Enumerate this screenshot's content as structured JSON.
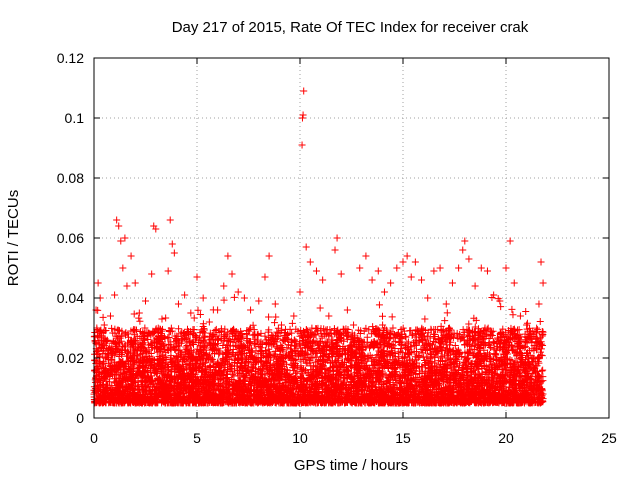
{
  "chart_data": {
    "type": "scatter",
    "title": "Day 217 of 2015, Rate Of TEC Index for receiver crak",
    "xlabel": "GPS time / hours",
    "ylabel": "ROTI / TECUs",
    "xlim": [
      0,
      25
    ],
    "ylim": [
      0,
      0.12
    ],
    "xticks": [
      0,
      5,
      10,
      15,
      20,
      25
    ],
    "yticks": [
      0,
      0.02,
      0.04,
      0.06,
      0.08,
      0.1,
      0.12
    ],
    "xtick_labels": [
      "0",
      "5",
      "10",
      "15",
      "20",
      "25"
    ],
    "ytick_labels": [
      "0",
      "0.02",
      "0.04",
      "0.06",
      "0.08",
      "0.1",
      "0.12"
    ],
    "grid": true,
    "marker": "+",
    "point_color": "#ff0000",
    "x_range_of_data": [
      0,
      21.8
    ],
    "typical_band": [
      0.005,
      0.03
    ],
    "series": [
      {
        "points": [
          [
            0.1,
            0.036
          ],
          [
            0.2,
            0.045
          ],
          [
            0.3,
            0.04
          ],
          [
            0.5,
            0.031
          ],
          [
            0.8,
            0.034
          ],
          [
            1.0,
            0.041
          ],
          [
            1.1,
            0.066
          ],
          [
            1.2,
            0.064
          ],
          [
            1.3,
            0.059
          ],
          [
            1.4,
            0.05
          ],
          [
            1.5,
            0.06
          ],
          [
            1.6,
            0.044
          ],
          [
            1.8,
            0.054
          ],
          [
            2.0,
            0.045
          ],
          [
            2.2,
            0.035
          ],
          [
            2.5,
            0.039
          ],
          [
            2.8,
            0.048
          ],
          [
            2.9,
            0.064
          ],
          [
            3.0,
            0.063
          ],
          [
            3.3,
            0.033
          ],
          [
            3.6,
            0.049
          ],
          [
            3.7,
            0.066
          ],
          [
            3.8,
            0.058
          ],
          [
            3.9,
            0.055
          ],
          [
            4.1,
            0.038
          ],
          [
            4.4,
            0.041
          ],
          [
            4.7,
            0.035
          ],
          [
            5.0,
            0.047
          ],
          [
            5.3,
            0.04
          ],
          [
            5.6,
            0.032
          ],
          [
            6.0,
            0.036
          ],
          [
            6.3,
            0.044
          ],
          [
            6.5,
            0.054
          ],
          [
            6.7,
            0.048
          ],
          [
            7.0,
            0.042
          ],
          [
            7.3,
            0.04
          ],
          [
            7.6,
            0.036
          ],
          [
            8.0,
            0.039
          ],
          [
            8.3,
            0.047
          ],
          [
            8.5,
            0.054
          ],
          [
            8.8,
            0.038
          ],
          [
            9.1,
            0.031
          ],
          [
            9.4,
            0.028
          ],
          [
            9.7,
            0.034
          ],
          [
            10.0,
            0.042
          ],
          [
            10.1,
            0.091
          ],
          [
            10.12,
            0.1
          ],
          [
            10.15,
            0.101
          ],
          [
            10.18,
            0.109
          ],
          [
            10.3,
            0.057
          ],
          [
            10.5,
            0.052
          ],
          [
            10.8,
            0.049
          ],
          [
            11.1,
            0.046
          ],
          [
            11.4,
            0.034
          ],
          [
            11.7,
            0.056
          ],
          [
            11.8,
            0.06
          ],
          [
            12.0,
            0.048
          ],
          [
            12.3,
            0.036
          ],
          [
            12.6,
            0.031
          ],
          [
            12.9,
            0.05
          ],
          [
            13.2,
            0.054
          ],
          [
            13.5,
            0.046
          ],
          [
            13.8,
            0.049
          ],
          [
            14.1,
            0.042
          ],
          [
            14.4,
            0.045
          ],
          [
            14.7,
            0.05
          ],
          [
            15.0,
            0.052
          ],
          [
            15.2,
            0.054
          ],
          [
            15.4,
            0.047
          ],
          [
            15.6,
            0.052
          ],
          [
            15.9,
            0.046
          ],
          [
            16.2,
            0.04
          ],
          [
            16.5,
            0.049
          ],
          [
            16.8,
            0.05
          ],
          [
            17.1,
            0.038
          ],
          [
            17.4,
            0.045
          ],
          [
            17.7,
            0.05
          ],
          [
            17.9,
            0.056
          ],
          [
            18.0,
            0.059
          ],
          [
            18.2,
            0.053
          ],
          [
            18.5,
            0.044
          ],
          [
            18.8,
            0.05
          ],
          [
            19.1,
            0.049
          ],
          [
            19.4,
            0.041
          ],
          [
            19.7,
            0.039
          ],
          [
            20.0,
            0.05
          ],
          [
            20.2,
            0.059
          ],
          [
            20.4,
            0.045
          ],
          [
            20.7,
            0.034
          ],
          [
            21.0,
            0.031
          ],
          [
            21.3,
            0.029
          ],
          [
            21.6,
            0.038
          ],
          [
            21.7,
            0.052
          ],
          [
            21.8,
            0.045
          ]
        ]
      }
    ]
  }
}
